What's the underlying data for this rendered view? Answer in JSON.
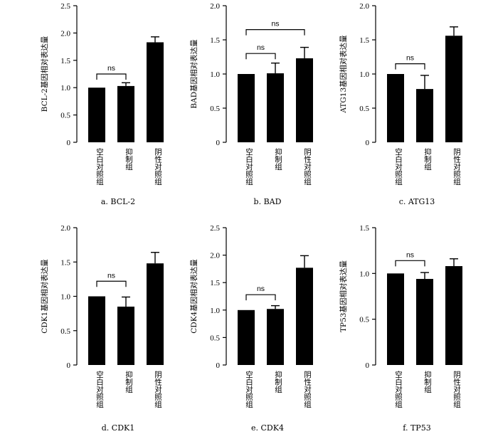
{
  "chart_data": [
    {
      "type": "bar",
      "caption": "a.  BCL-2",
      "ylabel": "BCL-2基因相对表达量",
      "ylim": [
        0,
        2.5
      ],
      "yticks": [
        "0",
        "0.5",
        "1.0",
        "1.5",
        "2.0",
        "2.5"
      ],
      "categories": [
        "空白对照组",
        "抑制组",
        "阴性对照组"
      ],
      "values": [
        1.0,
        1.03,
        1.83
      ],
      "errors": [
        0,
        0.06,
        0.1
      ],
      "significance": [
        {
          "from": 0,
          "to": 1,
          "y": 1.25,
          "label": "ns"
        }
      ]
    },
    {
      "type": "bar",
      "caption": "b.  BAD",
      "ylabel": "BAD基因相对表达量",
      "ylim": [
        0,
        2.0
      ],
      "yticks": [
        "0",
        "0.5",
        "1.0",
        "1.5",
        "2.0"
      ],
      "categories": [
        "空白对照组",
        "抑制组",
        "阴性对照组"
      ],
      "values": [
        1.0,
        1.01,
        1.23
      ],
      "errors": [
        0,
        0.15,
        0.16
      ],
      "significance": [
        {
          "from": 0,
          "to": 1,
          "y": 1.3,
          "label": "ns"
        },
        {
          "from": 0,
          "to": 2,
          "y": 1.65,
          "label": "ns"
        }
      ]
    },
    {
      "type": "bar",
      "caption": "c.  ATG13",
      "ylabel": "ATG13基因相对表达量",
      "ylim": [
        0,
        2.0
      ],
      "yticks": [
        "0",
        "0.5",
        "1.0",
        "1.5",
        "2.0"
      ],
      "categories": [
        "空白对照组",
        "抑制组",
        "阴性对照组"
      ],
      "values": [
        1.0,
        0.78,
        1.56
      ],
      "errors": [
        0,
        0.2,
        0.13
      ],
      "significance": [
        {
          "from": 0,
          "to": 1,
          "y": 1.15,
          "label": "ns"
        }
      ]
    },
    {
      "type": "bar",
      "caption": "d.  CDK1",
      "ylabel": "CDK1基因相对表达量",
      "ylim": [
        0,
        2.0
      ],
      "yticks": [
        "0",
        "0.5",
        "1.0",
        "1.5",
        "2.0"
      ],
      "categories": [
        "空白对照组",
        "抑制组",
        "阴性对照组"
      ],
      "values": [
        1.0,
        0.85,
        1.48
      ],
      "errors": [
        0,
        0.14,
        0.16
      ],
      "significance": [
        {
          "from": 0,
          "to": 1,
          "y": 1.22,
          "label": "ns"
        }
      ]
    },
    {
      "type": "bar",
      "caption": "e.  CDK4",
      "ylabel": "CDK4基因相对表达量",
      "ylim": [
        0,
        2.5
      ],
      "yticks": [
        "0",
        "0.5",
        "1.0",
        "1.5",
        "2.0",
        "2.5"
      ],
      "categories": [
        "空白对照组",
        "抑制组",
        "阴性对照组"
      ],
      "values": [
        1.0,
        1.02,
        1.77
      ],
      "errors": [
        0,
        0.06,
        0.22
      ],
      "significance": [
        {
          "from": 0,
          "to": 1,
          "y": 1.28,
          "label": "ns"
        }
      ]
    },
    {
      "type": "bar",
      "caption": "f.  TP53",
      "ylabel": "TP53基因相对表达量",
      "ylim": [
        0,
        1.5
      ],
      "yticks": [
        "0",
        "0.5",
        "1.0",
        "1.5"
      ],
      "categories": [
        "空白对照组",
        "抑制组",
        "阴性对照组"
      ],
      "values": [
        1.0,
        0.94,
        1.08
      ],
      "errors": [
        0,
        0.07,
        0.08
      ],
      "significance": [
        {
          "from": 0,
          "to": 1,
          "y": 1.14,
          "label": "ns"
        }
      ]
    }
  ]
}
